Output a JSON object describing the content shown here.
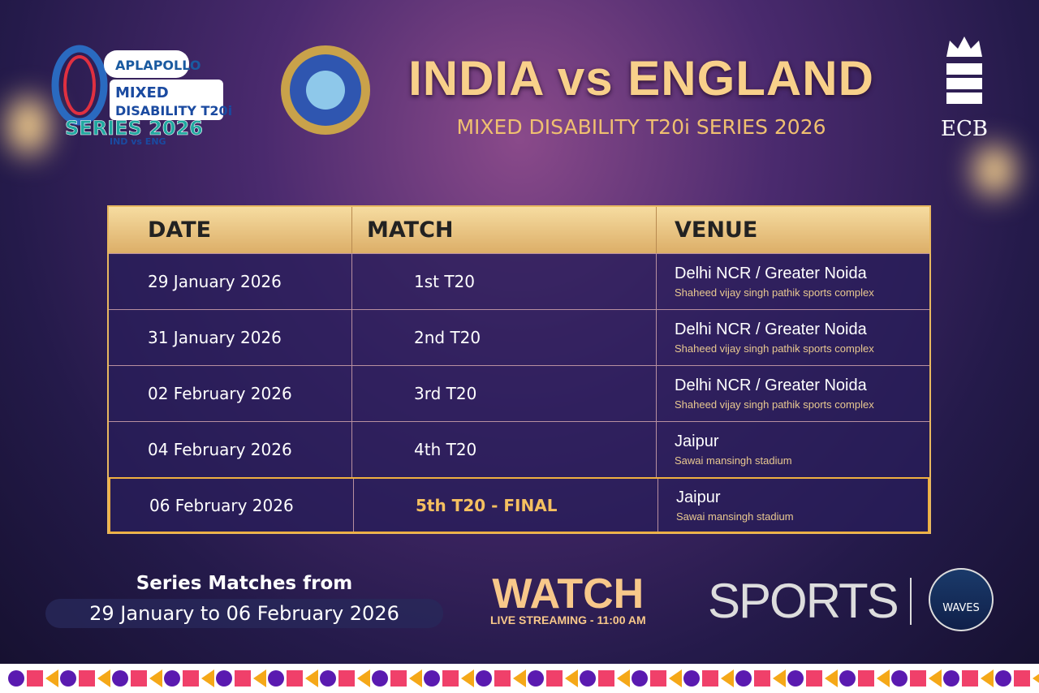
{
  "header": {
    "title": "INDIA vs ENGLAND",
    "subtitle": "MIXED DISABILITY T20i SERIES 2026"
  },
  "logos": {
    "series_logo": "APL APOLLO Mixed Disability T20i Series 2026 IND vs ENG",
    "dcci": "Differently Abled Cricket Council of India - DCCI",
    "ecb": "ECB"
  },
  "table": {
    "headers": [
      "DATE",
      "MATCH",
      "VENUE"
    ],
    "rows": [
      {
        "date": "29 January 2026",
        "match": "1st T20",
        "venue": "Delhi NCR / Greater Noida",
        "stadium": "Shaheed vijay singh pathik sports complex"
      },
      {
        "date": "31 January 2026",
        "match": "2nd T20",
        "venue": "Delhi NCR / Greater Noida",
        "stadium": "Shaheed vijay singh pathik sports complex"
      },
      {
        "date": "02 February 2026",
        "match": "3rd T20",
        "venue": "Delhi NCR / Greater Noida",
        "stadium": "Shaheed vijay singh pathik sports complex"
      },
      {
        "date": "04 February 2026",
        "match": "4th T20",
        "venue": "Jaipur",
        "stadium": "Sawai mansingh stadium"
      },
      {
        "date": "06 February 2026",
        "match": "5th T20 - FINAL",
        "venue": "Jaipur",
        "stadium": "Sawai mansingh stadium"
      }
    ]
  },
  "footer": {
    "series_from": "Series Matches from",
    "series_range": "29 January to 06 February 2026",
    "watch": "WATCH",
    "live": "LIVE STREAMING - 11:00 AM",
    "sports": "SPORTS",
    "waves": "WAVES"
  },
  "colors": {
    "gold": "#f8d08a",
    "purple": "#5a1ab0",
    "pink": "#f0406a",
    "orange": "#f5a818"
  }
}
